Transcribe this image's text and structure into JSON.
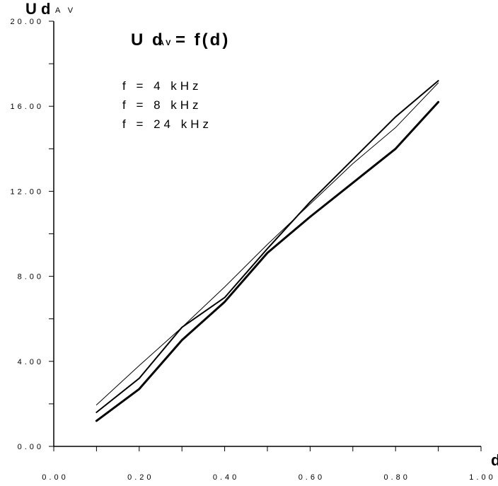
{
  "chart_data": {
    "type": "line",
    "title": "U d",
    "title_subscript": "AV",
    "title_suffix": "= f(d)",
    "ylabel": "U d",
    "ylabel_subscript": "A V",
    "xlabel": "d",
    "xlim": [
      0,
      1
    ],
    "ylim": [
      0,
      20
    ],
    "x_ticks": [
      "0.00",
      "0.20",
      "0.40",
      "0.60",
      "0.80",
      "1.00"
    ],
    "y_ticks": [
      "0.00",
      "4.00",
      "8.00",
      "12.00",
      "16.00",
      "20.00"
    ],
    "x_tick_values": [
      0,
      0.2,
      0.4,
      0.6,
      0.8,
      1.0
    ],
    "y_tick_values": [
      0,
      4,
      8,
      12,
      16,
      20
    ],
    "legend_entries": [
      "f = 4 kHz",
      "f = 8 kHz",
      "f = 24 kHz"
    ],
    "grid": false,
    "x": [
      0.1,
      0.2,
      0.3,
      0.4,
      0.5,
      0.6,
      0.7,
      0.8,
      0.9
    ],
    "series": [
      {
        "name": "f = 4 kHz",
        "values": [
          1.95,
          3.8,
          5.6,
          7.5,
          9.5,
          11.4,
          13.3,
          15.0,
          17.1
        ],
        "stroke": 1
      },
      {
        "name": "f = 8 kHz",
        "values": [
          1.6,
          3.2,
          5.6,
          7.0,
          9.3,
          11.5,
          13.5,
          15.5,
          17.2
        ],
        "stroke": 2
      },
      {
        "name": "f = 24 kHz",
        "values": [
          1.2,
          2.7,
          5.0,
          6.8,
          9.1,
          10.8,
          12.4,
          14.0,
          16.2
        ],
        "stroke": 3
      }
    ]
  }
}
